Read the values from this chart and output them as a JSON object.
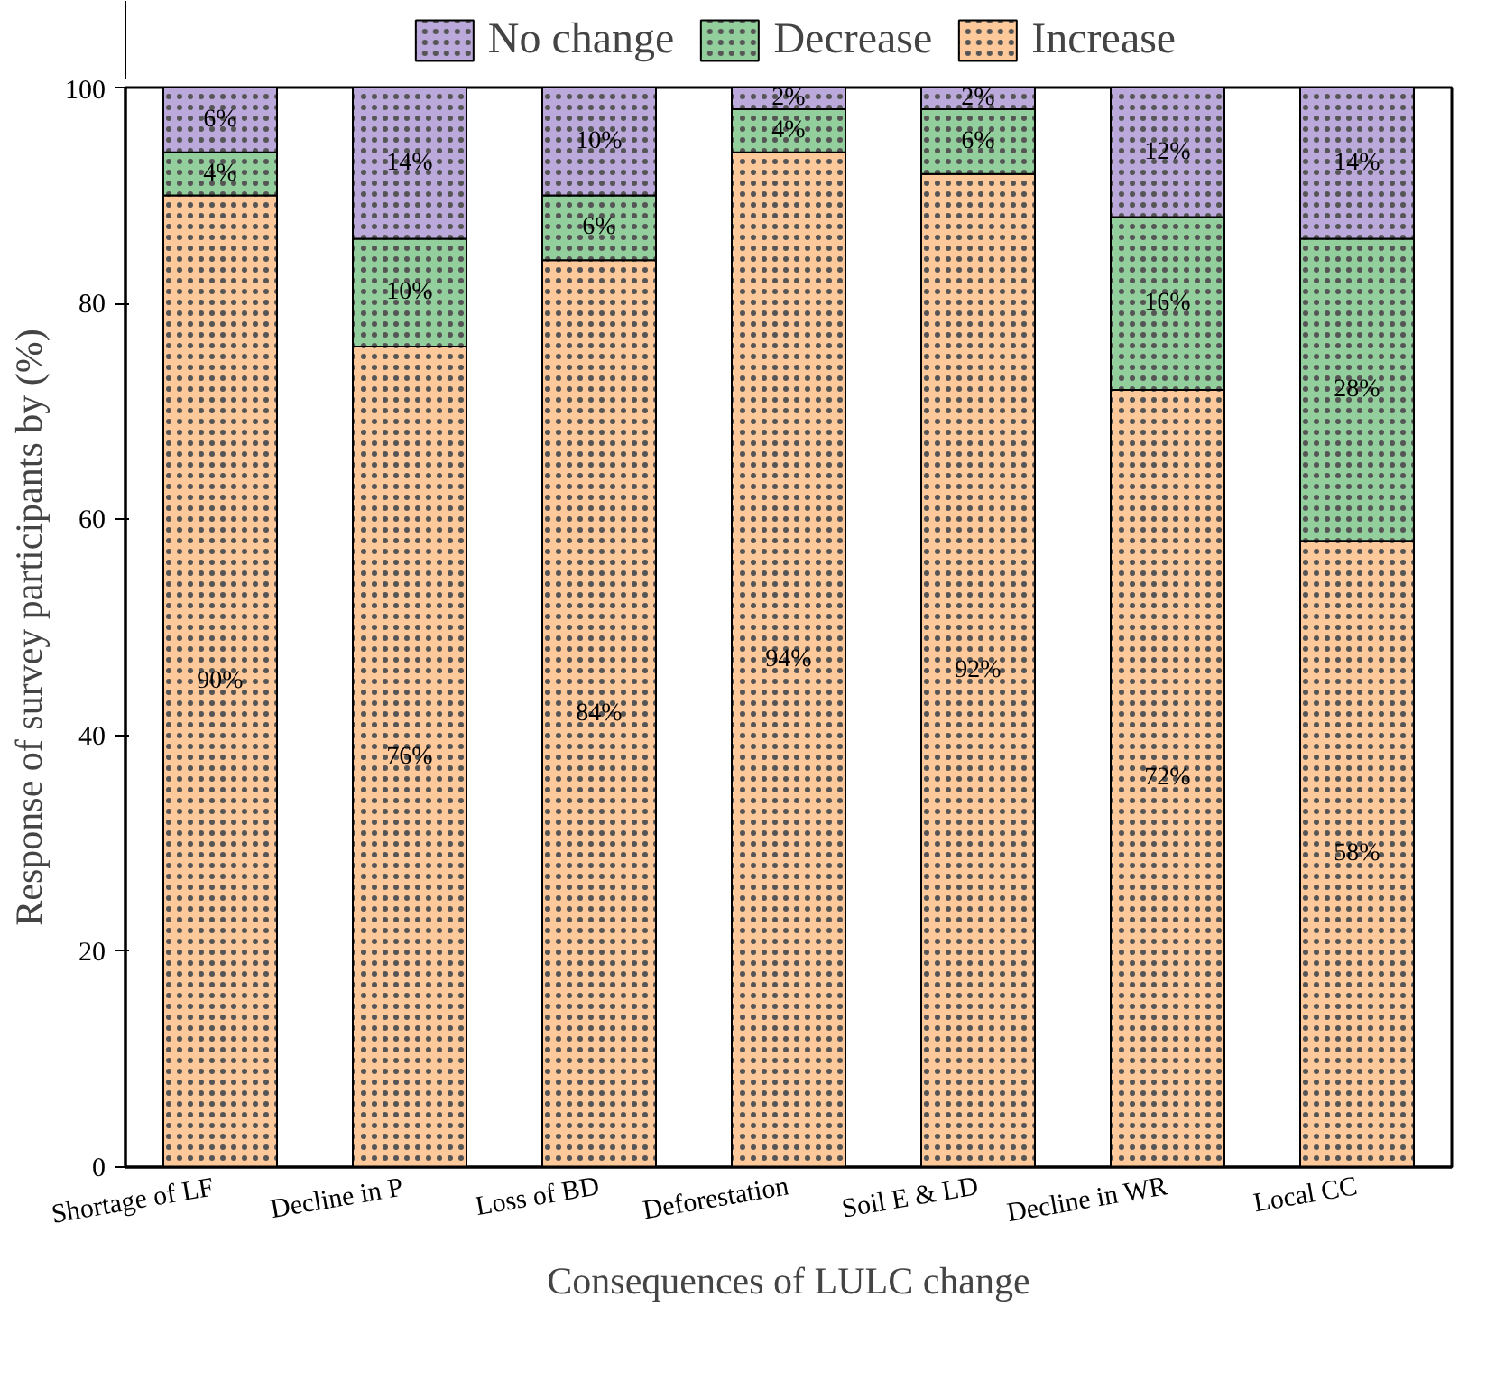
{
  "chart_data": {
    "type": "bar",
    "stacked": true,
    "xlabel": "Consequences of LULC change",
    "ylabel": "Response of survey participants by (%)",
    "categories": [
      "Shortage of  LF",
      "Decline in  P",
      "Loss of BD",
      "Deforestation",
      "Soil E & LD",
      "Decline in WR",
      "Local CC"
    ],
    "series": [
      {
        "name": "Increase",
        "color": "#fdc99a",
        "values": [
          90,
          76,
          84,
          94,
          92,
          72,
          58
        ],
        "value_labels": [
          "90%",
          "76%",
          "84%",
          "94%",
          "92%",
          "72%",
          "58%"
        ]
      },
      {
        "name": "Decrease",
        "color": "#93cf9c",
        "values": [
          4,
          10,
          6,
          4,
          6,
          16,
          28
        ],
        "value_labels": [
          "4%",
          "10%",
          "6%",
          "4%",
          "6%",
          "16%",
          "28%"
        ]
      },
      {
        "name": "No change",
        "color": "#baa9da",
        "values": [
          6,
          14,
          10,
          2,
          2,
          12,
          14
        ],
        "value_labels": [
          "6%",
          "14%",
          "10%",
          "2%",
          "2%",
          "12%",
          "14%"
        ]
      }
    ],
    "ylim": [
      0,
      100
    ],
    "yticks": [
      0,
      20,
      40,
      60,
      80,
      100
    ],
    "grid": false,
    "legend": "top"
  }
}
